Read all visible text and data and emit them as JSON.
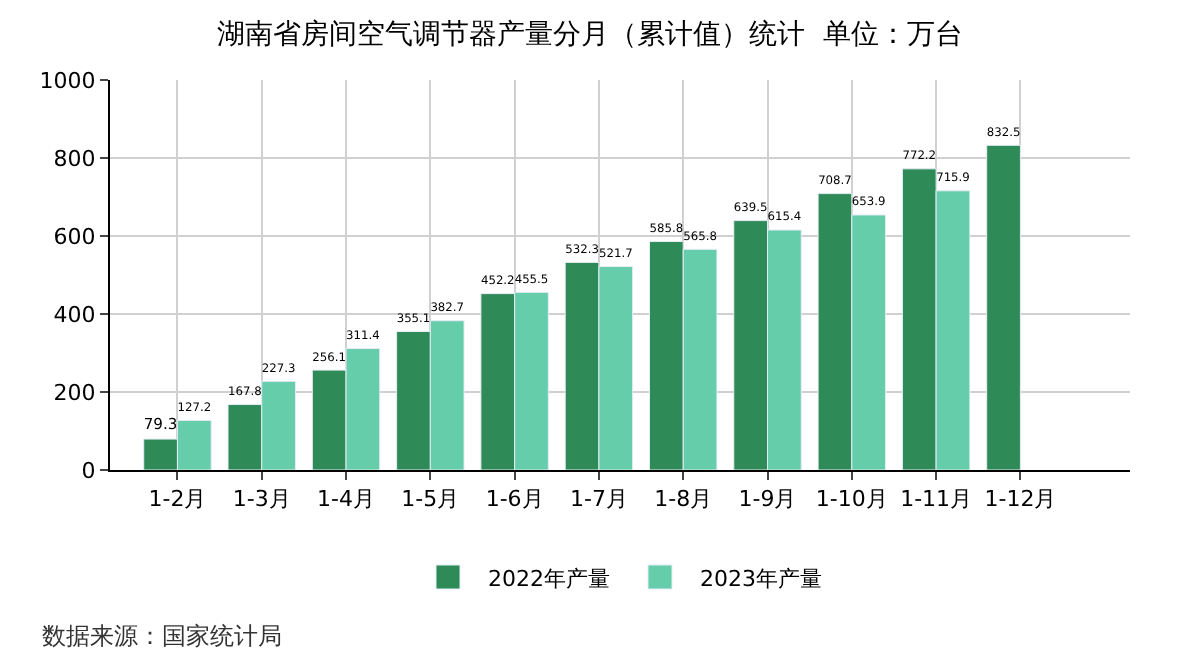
{
  "chart_data": {
    "type": "bar",
    "title": "湖南省房间空气调节器产量分月（累计值）统计  单位：万台",
    "categories": [
      "1-2月",
      "1-3月",
      "1-4月",
      "1-5月",
      "1-6月",
      "1-7月",
      "1-8月",
      "1-9月",
      "1-10月",
      "1-11月",
      "1-12月"
    ],
    "series": [
      {
        "name": "2022年产量",
        "color": "#2e8b57",
        "values": [
          79.3,
          167.8,
          256.1,
          355.1,
          452.2,
          532.3,
          585.8,
          639.5,
          708.7,
          772.2,
          832.5
        ]
      },
      {
        "name": "2023年产量",
        "color": "#66cdaa",
        "values": [
          127.2,
          227.3,
          311.4,
          382.7,
          455.5,
          521.7,
          565.8,
          615.4,
          653.9,
          715.9,
          null
        ]
      }
    ],
    "ylim": [
      0,
      1000
    ],
    "yticks": [
      0,
      200,
      400,
      600,
      800,
      1000
    ],
    "grid": true,
    "legend": "bottom",
    "data_labels": true,
    "annotations": [
      "数据来源：国家统计局"
    ]
  }
}
